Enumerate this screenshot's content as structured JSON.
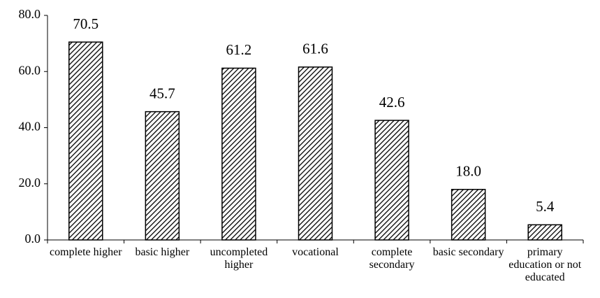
{
  "chart_data": {
    "type": "bar",
    "categories": [
      "complete higher",
      "basic higher",
      "uncompleted higher",
      "vocational",
      "complete secondary",
      "basic secondary",
      "primary education or not educated"
    ],
    "values": [
      70.5,
      45.7,
      61.2,
      61.6,
      42.6,
      18.0,
      5.4
    ],
    "value_labels": [
      "70.5",
      "45.7",
      "61.2",
      "61.6",
      "42.6",
      "18.0",
      "5.4"
    ],
    "color": "#000000",
    "ylim": [
      0,
      80
    ],
    "yticks": [
      {
        "value": 0,
        "label": "0.0"
      },
      {
        "value": 20,
        "label": "20.0"
      },
      {
        "value": 40,
        "label": "40.0"
      },
      {
        "value": 60,
        "label": "60.0"
      },
      {
        "value": 80,
        "label": "80.0"
      }
    ],
    "grid": false
  }
}
